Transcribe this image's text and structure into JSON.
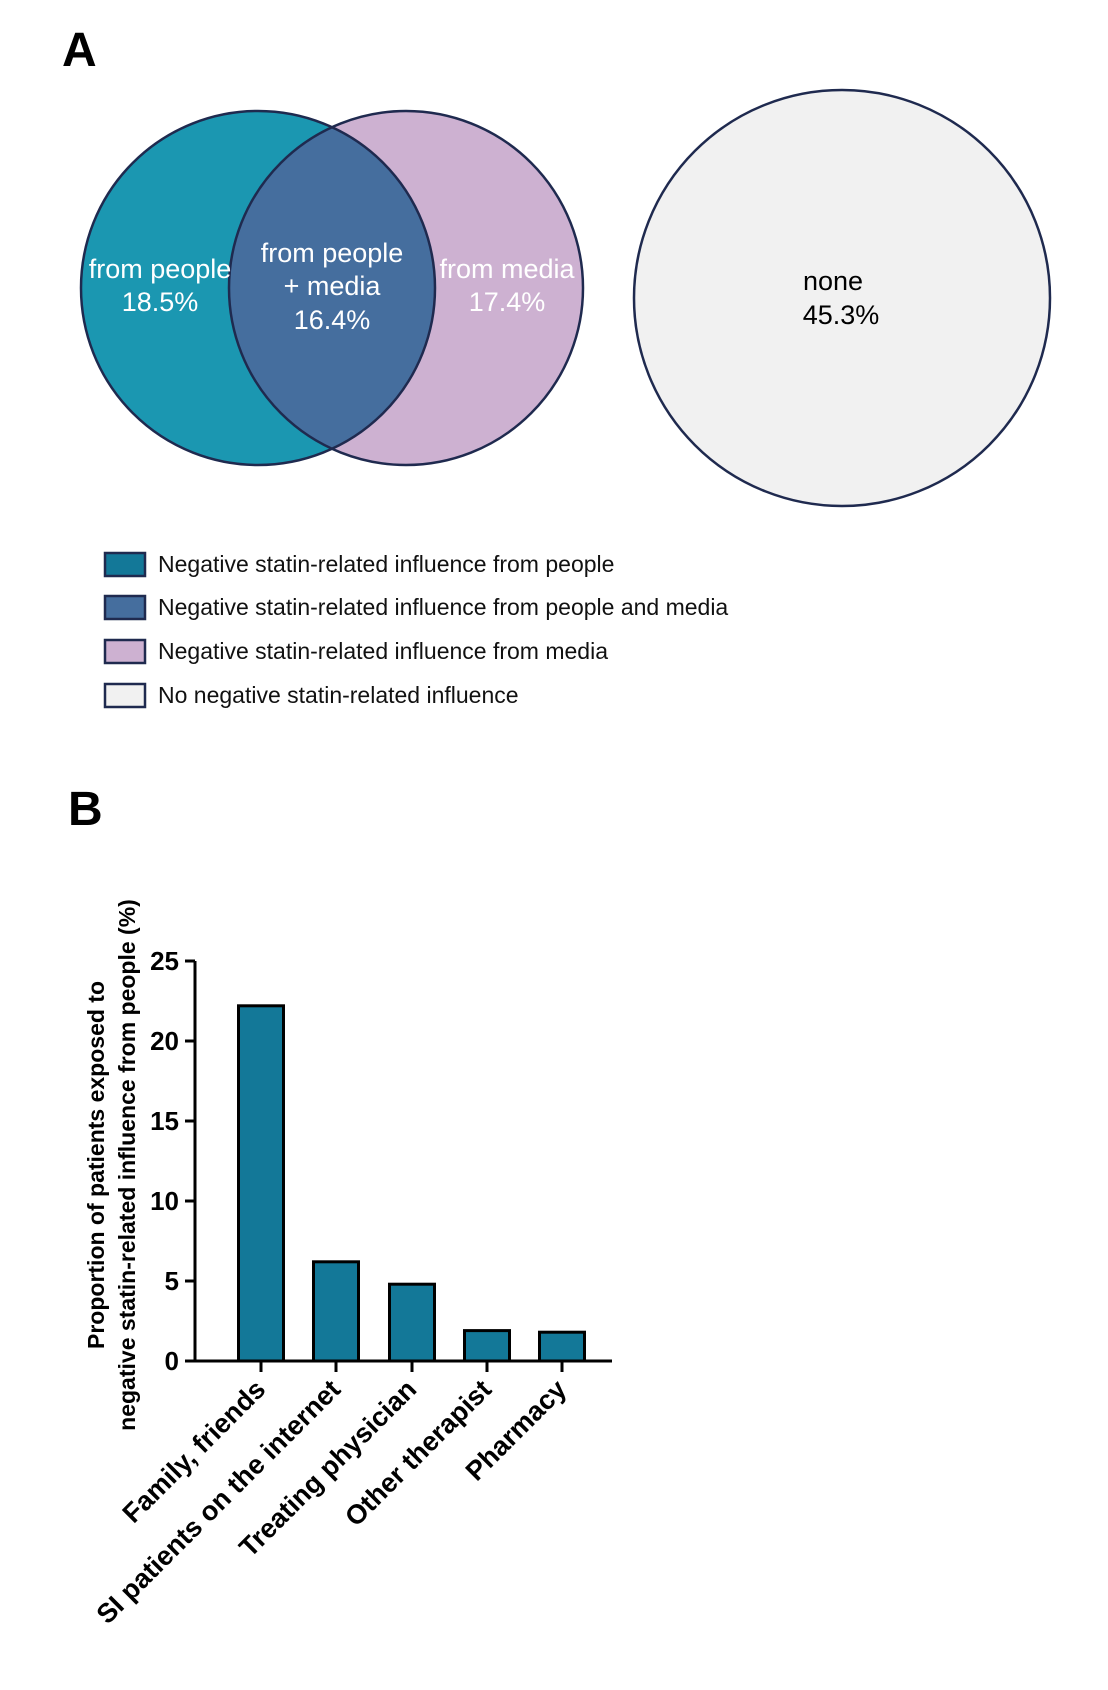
{
  "panel_a": {
    "letter": "A",
    "venn": {
      "people": {
        "label": "from people",
        "value": "18.5%",
        "color": "#1b97b1"
      },
      "overlap": {
        "label_line1": "from people",
        "label_line2": "+ media",
        "value": "16.4%",
        "color": "#456e9e"
      },
      "media": {
        "label": "from media",
        "value": "17.4%",
        "color": "#cdb1d1"
      },
      "none": {
        "label": "none",
        "value": "45.3%",
        "color": "#f1f1f1"
      },
      "outline_color": "#1f2a4f"
    },
    "legend": [
      {
        "label": "Negative statin-related influence from people",
        "color": "#137898"
      },
      {
        "label": "Negative statin-related influence from people and media",
        "color": "#456e9e"
      },
      {
        "label": "Negative statin-related influence from media",
        "color": "#cdb1d1"
      },
      {
        "label": "No negative statin-related influence",
        "color": "#f1f1f1"
      }
    ]
  },
  "panel_b": {
    "letter": "B",
    "ylabel_line1": "Proportion of patients exposed to",
    "ylabel_line2": "negative statin-related influence from people (%)"
  },
  "chart_data": {
    "type": "bar",
    "categories": [
      "Family, friends",
      "SI patients on the internet",
      "Treating physician",
      "Other therapist",
      "Pharmacy"
    ],
    "values": [
      22.2,
      6.2,
      4.8,
      1.9,
      1.8
    ],
    "ylim": [
      0,
      25
    ],
    "yticks": [
      0,
      5,
      10,
      15,
      20,
      25
    ],
    "xlabel": "",
    "ylabel": "Proportion of patients exposed to negative statin-related influence from people (%)",
    "bar_color": "#137898",
    "grid": false
  }
}
